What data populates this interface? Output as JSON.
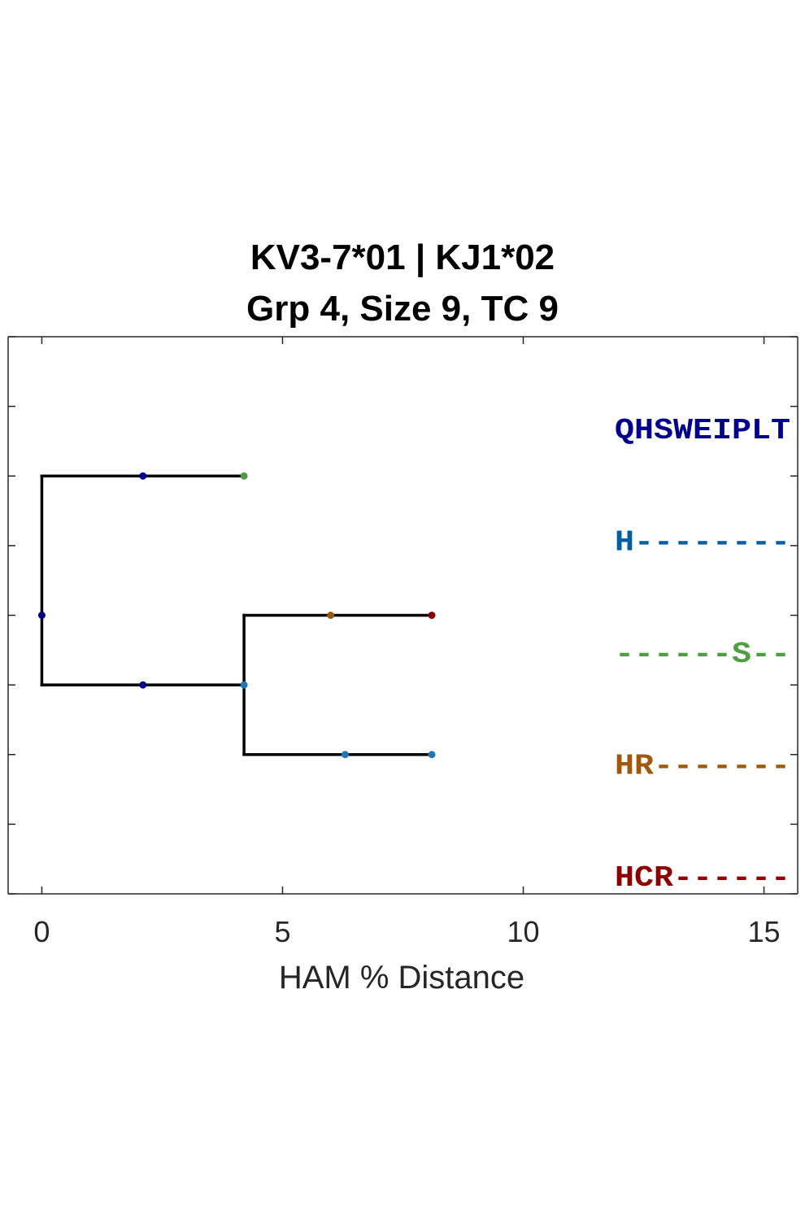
{
  "chart_data": {
    "type": "tree",
    "title_lines": [
      "KV3-7*01 | KJ1*02",
      "Grp 4, Size 9, TC 9"
    ],
    "xlabel": "HAM % Distance",
    "ylabel": "",
    "xlim": [
      -0.7,
      15.7
    ],
    "ylim": [
      0,
      8
    ],
    "x_ticks": [
      0,
      5,
      10,
      15
    ],
    "y_ticks": [
      0,
      1,
      2,
      3,
      4,
      5,
      6,
      7,
      8
    ],
    "grid": false,
    "branches": [
      {
        "from": [
          0,
          6
        ],
        "to": [
          0,
          3
        ]
      },
      {
        "from": [
          0,
          6
        ],
        "to": [
          4.2,
          6
        ]
      },
      {
        "from": [
          0,
          3
        ],
        "to": [
          4.2,
          3
        ]
      },
      {
        "from": [
          4.2,
          4
        ],
        "to": [
          4.2,
          2
        ]
      },
      {
        "from": [
          4.2,
          4
        ],
        "to": [
          8.1,
          4
        ]
      },
      {
        "from": [
          4.2,
          2
        ],
        "to": [
          8.1,
          2
        ]
      }
    ],
    "nodes": [
      {
        "x": 0.0,
        "y": 4,
        "color": "#00008b"
      },
      {
        "x": 2.1,
        "y": 6,
        "color": "#00008b"
      },
      {
        "x": 4.2,
        "y": 6,
        "color": "#4f9d40"
      },
      {
        "x": 2.1,
        "y": 3,
        "color": "#00008b"
      },
      {
        "x": 4.2,
        "y": 3,
        "color": "#1f77b4"
      },
      {
        "x": 6.0,
        "y": 4,
        "color": "#a0580a"
      },
      {
        "x": 8.1,
        "y": 4,
        "color": "#8b0000"
      },
      {
        "x": 6.3,
        "y": 2,
        "color": "#1f77b4"
      },
      {
        "x": 8.1,
        "y": 2,
        "color": "#1f77b4"
      }
    ],
    "sequences": [
      {
        "text": "QHSWEIPLT",
        "color": "#00008b"
      },
      {
        "text": "H--------",
        "color": "#005fa3"
      },
      {
        "text": "------S--",
        "color": "#4f9d40"
      },
      {
        "text": "HR-------",
        "color": "#a0580a"
      },
      {
        "text": "HCR------",
        "color": "#8b0000"
      }
    ]
  }
}
